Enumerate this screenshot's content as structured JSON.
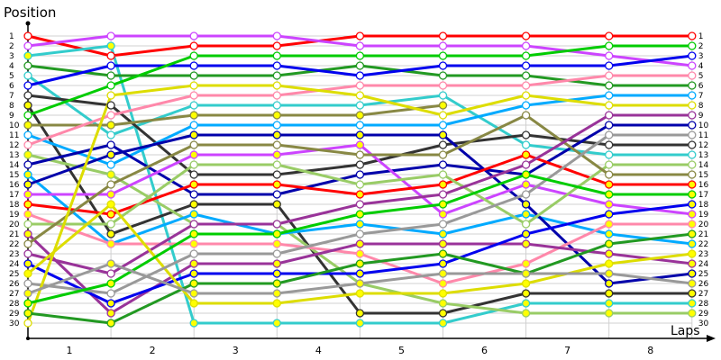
{
  "chart_data": {
    "type": "line",
    "title": "",
    "ylabel": "Position",
    "xlabel": "Laps",
    "x": [
      0,
      1,
      2,
      3,
      4,
      5,
      6,
      7,
      8
    ],
    "lap_labels": [
      "1",
      "2",
      "3",
      "4",
      "5",
      "6",
      "7",
      "8"
    ],
    "y_ticks": [
      1,
      2,
      3,
      4,
      5,
      6,
      7,
      8,
      9,
      10,
      11,
      12,
      13,
      14,
      15,
      16,
      17,
      18,
      19,
      20,
      21,
      22,
      23,
      24,
      25,
      26,
      27,
      28,
      29,
      30
    ],
    "ylim": [
      1,
      30
    ],
    "y_inverted": true,
    "grid": true,
    "legend": "none",
    "marker_styles": {
      "hollow": "#ffffff",
      "filled": "#ffff00"
    },
    "series": [
      {
        "name": "Red (hollow)",
        "color": "#ff0000",
        "marker": "hollow",
        "values": [
          1,
          3,
          2,
          2,
          1,
          1,
          1,
          1,
          1
        ]
      },
      {
        "name": "Magenta (hollow)",
        "color": "#cc44ff",
        "marker": "hollow",
        "values": [
          2,
          1,
          1,
          1,
          2,
          2,
          2,
          3,
          4
        ]
      },
      {
        "name": "Teal (filled)",
        "color": "#33cccc",
        "marker": "filled",
        "values": [
          3,
          2,
          30,
          30,
          30,
          30,
          28,
          28,
          28
        ]
      },
      {
        "name": "Dark green (hollow)",
        "color": "#229922",
        "marker": "hollow",
        "values": [
          4,
          5,
          5,
          5,
          4,
          5,
          5,
          6,
          6
        ]
      },
      {
        "name": "Teal (hollow)",
        "color": "#33cccc",
        "marker": "hollow",
        "values": [
          5,
          11,
          8,
          8,
          8,
          7,
          12,
          13,
          13
        ]
      },
      {
        "name": "Blue (hollow)",
        "color": "#0000ee",
        "marker": "hollow",
        "values": [
          6,
          4,
          4,
          4,
          5,
          4,
          4,
          4,
          3
        ]
      },
      {
        "name": "Black (hollow)",
        "color": "#333333",
        "marker": "hollow",
        "values": [
          7,
          8,
          15,
          15,
          14,
          12,
          11,
          12,
          12
        ]
      },
      {
        "name": "Black (filled)",
        "color": "#333333",
        "marker": "filled",
        "values": [
          8,
          21,
          18,
          18,
          29,
          29,
          27,
          27,
          27
        ]
      },
      {
        "name": "Green (hollow)",
        "color": "#00cc00",
        "marker": "hollow",
        "values": [
          9,
          6,
          3,
          3,
          3,
          3,
          3,
          2,
          2
        ]
      },
      {
        "name": "Olive (filled)",
        "color": "#888844",
        "marker": "filled",
        "values": [
          10,
          10,
          9,
          9,
          9,
          8,
          null,
          null,
          null
        ]
      },
      {
        "name": "Light blue (hollow)",
        "color": "#00aaff",
        "marker": "hollow",
        "values": [
          11,
          14,
          10,
          10,
          10,
          10,
          8,
          7,
          7
        ]
      },
      {
        "name": "Pink (hollow)",
        "color": "#ff88aa",
        "marker": "hollow",
        "values": [
          12,
          9,
          7,
          7,
          6,
          6,
          6,
          5,
          5
        ]
      },
      {
        "name": "Lime (filled)",
        "color": "#99cc66",
        "marker": "filled",
        "values": [
          13,
          15,
          20,
          20,
          26,
          28,
          29,
          29,
          29
        ]
      },
      {
        "name": "Dark blue (hollow)",
        "color": "#0000aa",
        "marker": "hollow",
        "values": [
          14,
          12,
          17,
          17,
          15,
          14,
          15,
          10,
          10
        ]
      },
      {
        "name": "Light blue (filled)",
        "color": "#00aaff",
        "marker": "filled",
        "values": [
          15,
          22,
          19,
          21,
          20,
          21,
          19,
          21,
          22
        ]
      },
      {
        "name": "Dark blue (filled)",
        "color": "#0000aa",
        "marker": "filled",
        "values": [
          16,
          13,
          11,
          11,
          11,
          11,
          18,
          26,
          25
        ]
      },
      {
        "name": "Magenta (filled)",
        "color": "#cc44ff",
        "marker": "filled",
        "values": [
          17,
          17,
          13,
          13,
          12,
          19,
          16,
          18,
          19
        ]
      },
      {
        "name": "Red (filled)",
        "color": "#ff0000",
        "marker": "filled",
        "values": [
          18,
          19,
          16,
          16,
          17,
          16,
          13,
          16,
          16
        ]
      },
      {
        "name": "Pink (filled)",
        "color": "#ff88aa",
        "marker": "filled",
        "values": [
          19,
          22,
          22,
          22,
          23,
          26,
          24,
          20,
          20
        ]
      },
      {
        "name": "Lime (hollow)",
        "color": "#99cc66",
        "marker": "hollow",
        "values": [
          20,
          20,
          14,
          14,
          16,
          15,
          20,
          14,
          14
        ]
      },
      {
        "name": "Purple (filled)",
        "color": "#993399",
        "marker": "filled",
        "values": [
          21,
          29,
          24,
          24,
          22,
          22,
          22,
          23,
          24
        ]
      },
      {
        "name": "Olive (hollow)",
        "color": "#888844",
        "marker": "hollow",
        "values": [
          22,
          16,
          12,
          12,
          13,
          13,
          9,
          15,
          15
        ]
      },
      {
        "name": "Purple (hollow)",
        "color": "#993399",
        "marker": "hollow",
        "values": [
          23,
          25,
          20,
          20,
          18,
          17,
          14,
          9,
          9
        ]
      },
      {
        "name": "Blue (filled)",
        "color": "#0000ee",
        "marker": "filled",
        "values": [
          24,
          28,
          25,
          25,
          25,
          24,
          21,
          19,
          18
        ]
      },
      {
        "name": "Yellow (filled)",
        "color": "#dddd00",
        "marker": "filled",
        "values": [
          25,
          18,
          28,
          28,
          27,
          27,
          26,
          24,
          23
        ]
      },
      {
        "name": "Gray (hollow)",
        "color": "#999999",
        "marker": "hollow",
        "values": [
          26,
          27,
          23,
          23,
          21,
          20,
          17,
          11,
          11
        ]
      },
      {
        "name": "Yellow (hollow)",
        "color": "#dddd00",
        "marker": "hollow",
        "values": [
          30,
          7,
          6,
          6,
          7,
          9,
          7,
          8,
          8
        ]
      },
      {
        "name": "Green (filled)",
        "color": "#00cc00",
        "marker": "filled",
        "values": [
          28,
          26,
          21,
          21,
          19,
          18,
          15,
          17,
          17
        ]
      },
      {
        "name": "Dark green (filled)",
        "color": "#229922",
        "marker": "filled",
        "values": [
          29,
          30,
          26,
          26,
          24,
          23,
          25,
          22,
          21
        ]
      },
      {
        "name": "Gray (filled)",
        "color": "#999999",
        "marker": "filled",
        "values": [
          27,
          24,
          27,
          27,
          26,
          25,
          25,
          25,
          26
        ]
      }
    ]
  }
}
